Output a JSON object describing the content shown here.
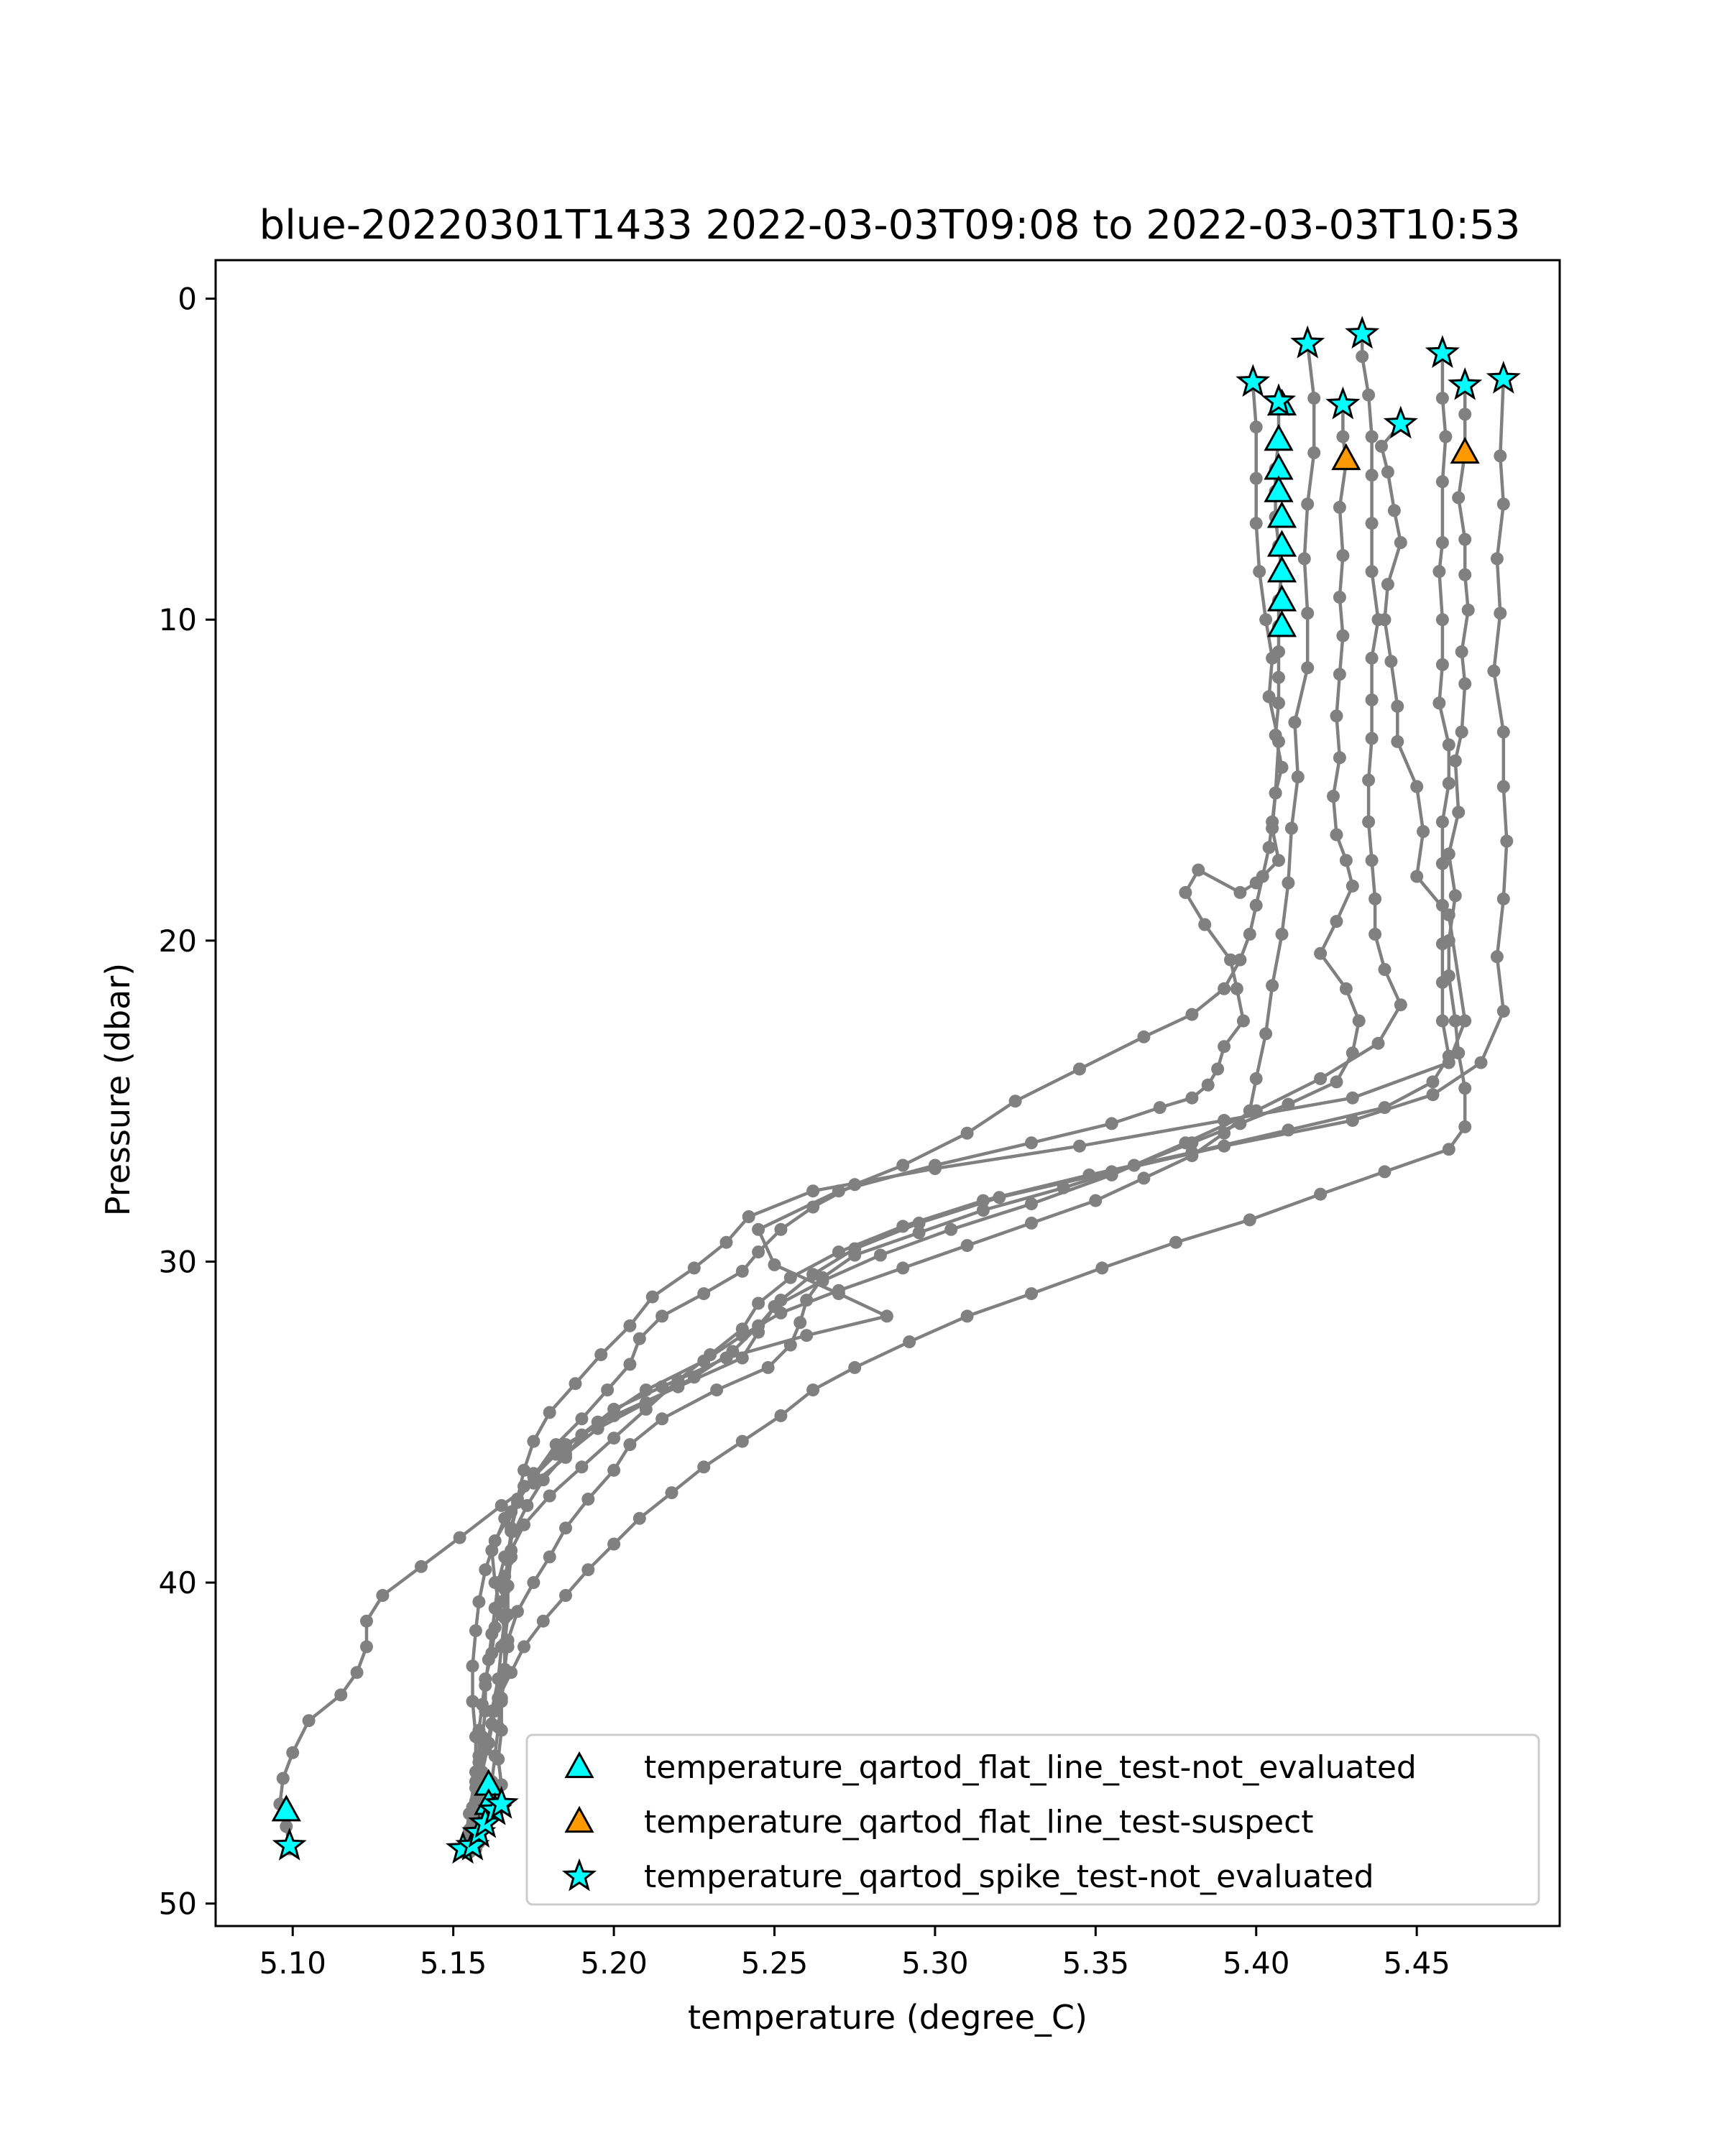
{
  "chart_data": {
    "type": "line",
    "title": "blue-20220301T1433 2022-03-03T09:08 to 2022-03-03T10:53",
    "xlabel": "temperature (degree_C)",
    "ylabel": "Pressure (dbar)",
    "xlim": [
      5.076,
      5.4945
    ],
    "ylim": [
      50.7,
      -1.2
    ],
    "y_inverted": true,
    "grid": false,
    "legend_position": "lower right",
    "xticks": [
      "5.10",
      "5.15",
      "5.20",
      "5.25",
      "5.30",
      "5.35",
      "5.40",
      "5.45"
    ],
    "yticks": [
      "0",
      "10",
      "20",
      "30",
      "40",
      "50"
    ],
    "colors": {
      "profile_line": "#808080",
      "flat_line_not_evaluated": "#00ffff",
      "flat_line_suspect": "#ff9900",
      "spike_not_evaluated": "#00ffff",
      "marker_edge": "#000000",
      "axes": "#000000"
    },
    "series": [
      {
        "x": [
          5.399,
          5.4,
          5.4,
          5.4,
          5.401,
          5.403,
          5.405,
          5.404,
          5.407,
          5.406,
          5.405,
          5.407,
          5.4,
          5.395,
          5.382,
          5.378,
          5.384,
          5.392,
          5.394,
          5.396,
          5.39,
          5.388,
          5.385,
          5.38,
          5.37,
          5.355,
          5.33,
          5.3,
          5.27,
          5.245,
          5.25,
          5.27,
          5.285,
          5.26,
          5.235,
          5.215,
          5.2,
          5.19,
          5.185,
          5.175,
          5.165,
          5.152,
          5.14,
          5.128,
          5.123,
          5.123,
          5.12,
          5.115,
          5.105,
          5.1,
          5.097,
          5.096,
          5.098,
          5.099
        ],
        "y": [
          2.7,
          4,
          5.6,
          7,
          8.5,
          10,
          11.2,
          12.4,
          13.8,
          15.4,
          16.5,
          17.5,
          18.2,
          18.5,
          17.8,
          18.5,
          19.5,
          20.6,
          21.5,
          22.5,
          23.3,
          24,
          24.5,
          24.9,
          25.2,
          25.7,
          26.3,
          27,
          27.8,
          29,
          30.1,
          31,
          31.7,
          32.3,
          33,
          33.9,
          34.6,
          35.4,
          36.1,
          36.9,
          37.6,
          38.6,
          39.5,
          40.4,
          41.2,
          42,
          42.8,
          43.5,
          44.3,
          45.3,
          46.1,
          46.9,
          47.6,
          48.3
        ]
      },
      {
        "x": [
          5.407,
          5.407,
          5.406,
          5.406,
          5.406,
          5.407,
          5.408,
          5.407,
          5.407,
          5.407,
          5.407,
          5.407,
          5.406,
          5.408,
          5.406,
          5.405,
          5.404,
          5.402,
          5.4,
          5.398,
          5.395,
          5.39,
          5.38,
          5.365,
          5.345,
          5.325,
          5.31,
          5.29,
          5.275,
          5.262,
          5.252,
          5.245,
          5.24,
          5.228,
          5.215,
          5.208,
          5.205,
          5.198,
          5.19,
          5.182,
          5.175,
          5.168,
          5.163,
          5.16,
          5.158,
          5.157,
          5.156,
          5.156,
          5.157,
          5.157,
          5.155,
          5.153
        ],
        "y": [
          3.2,
          4.4,
          5.3,
          6,
          6.8,
          7.7,
          8.5,
          9.4,
          10.2,
          11,
          11.8,
          12.6,
          13.6,
          14.6,
          15.4,
          16.3,
          17.1,
          18,
          18.9,
          19.8,
          20.6,
          21.5,
          22.3,
          23,
          24,
          25,
          26,
          27,
          27.6,
          28.3,
          29,
          29.7,
          30.3,
          31,
          31.7,
          32.4,
          33.2,
          34,
          34.9,
          35.7,
          36.7,
          37.8,
          38.7,
          39.6,
          40.6,
          41.5,
          42.6,
          43.7,
          44.8,
          45.9,
          47.2,
          48.4
        ]
      },
      {
        "x": [
          5.416,
          5.418,
          5.418,
          5.416,
          5.415,
          5.416,
          5.416,
          5.412,
          5.413,
          5.411,
          5.41,
          5.408,
          5.405,
          5.403,
          5.4,
          5.398,
          5.39,
          5.38,
          5.365,
          5.35,
          5.33,
          5.31,
          5.29,
          5.27,
          5.252,
          5.24,
          5.228,
          5.21,
          5.195,
          5.182,
          5.172,
          5.166,
          5.162,
          5.163,
          5.165,
          5.167,
          5.165,
          5.163,
          5.161,
          5.159,
          5.158,
          5.158,
          5.157,
          5.158,
          5.16
        ],
        "y": [
          1.4,
          3.1,
          4.8,
          6.4,
          8.1,
          9.8,
          11.5,
          13.2,
          14.9,
          16.5,
          18.2,
          19.8,
          21.4,
          22.9,
          24.3,
          25.3,
          26,
          26.7,
          27.4,
          28.1,
          28.8,
          29.5,
          30.2,
          30.9,
          31.6,
          32.3,
          33.1,
          34,
          35,
          36,
          37,
          38,
          39,
          40,
          41,
          42,
          43,
          44,
          45,
          45.9,
          46.8,
          47.4,
          47.9,
          48.1,
          47.5
        ]
      },
      {
        "x": [
          5.427,
          5.427,
          5.428,
          5.426,
          5.427,
          5.426,
          5.427,
          5.426,
          5.425,
          5.426,
          5.424,
          5.425,
          5.428,
          5.43,
          5.425,
          5.42,
          5.428,
          5.432,
          5.43,
          5.425,
          5.41,
          5.395,
          5.38,
          5.362,
          5.34,
          5.315,
          5.295,
          5.275,
          5.265,
          5.26,
          5.258,
          5.255,
          5.248,
          5.232,
          5.215,
          5.205,
          5.2,
          5.192,
          5.185,
          5.18,
          5.175,
          5.17,
          5.167,
          5.166,
          5.165,
          5.164,
          5.163,
          5.162,
          5.16,
          5.158,
          5.157
        ],
        "y": [
          3.3,
          4.3,
          5.1,
          6.5,
          8,
          9.3,
          10.5,
          11.7,
          13,
          14.3,
          15.5,
          16.7,
          17.5,
          18.3,
          19.4,
          20.4,
          21.5,
          22.5,
          23.5,
          24.4,
          25.1,
          25.7,
          26.3,
          27,
          27.7,
          28.4,
          29.1,
          29.8,
          30.5,
          31.2,
          31.9,
          32.6,
          33.3,
          34,
          34.9,
          35.7,
          36.5,
          37.4,
          38.3,
          39.2,
          40,
          40.9,
          41.8,
          42.7,
          43.6,
          44.5,
          45.4,
          46.2,
          47,
          47.7,
          48.3
        ]
      },
      {
        "x": [
          5.433,
          5.433,
          5.435,
          5.436,
          5.436,
          5.436,
          5.436,
          5.438,
          5.436,
          5.436,
          5.436,
          5.435,
          5.435,
          5.436,
          5.437,
          5.437,
          5.44,
          5.445,
          5.438,
          5.42,
          5.4,
          5.378,
          5.355,
          5.33,
          5.305,
          5.283,
          5.265,
          5.25,
          5.245,
          5.24,
          5.22,
          5.2,
          5.185,
          5.175,
          5.17,
          5.168,
          5.167,
          5.166,
          5.166,
          5.165,
          5.164,
          5.162,
          5.161
        ],
        "y": [
          1.1,
          1.8,
          3,
          4.3,
          5.5,
          7,
          8.5,
          10,
          11.2,
          12.5,
          13.7,
          15,
          16.3,
          17.5,
          18.7,
          19.8,
          20.9,
          22,
          23.2,
          24.3,
          25.3,
          26.3,
          27.3,
          28.2,
          29,
          29.8,
          30.6,
          31.4,
          32.2,
          33,
          33.9,
          34.8,
          35.7,
          36.6,
          37.5,
          38.4,
          39.3,
          40.2,
          41.1,
          42,
          43,
          44,
          45
        ]
      },
      {
        "x": [
          5.445,
          5.439,
          5.441,
          5.443,
          5.445,
          5.441,
          5.44,
          5.442,
          5.444,
          5.444,
          5.45,
          5.452,
          5.45,
          5.46,
          5.465,
          5.46,
          5.43,
          5.39,
          5.345,
          5.3,
          5.262,
          5.242,
          5.235,
          5.225,
          5.212,
          5.205,
          5.196,
          5.188,
          5.18,
          5.175,
          5.172,
          5.17,
          5.168,
          5.168,
          5.167,
          5.167,
          5.166,
          5.166,
          5.165,
          5.165,
          5.164,
          5.165,
          5.165
        ],
        "y": [
          3.9,
          4.6,
          5.4,
          6.6,
          7.6,
          8.9,
          10,
          11.3,
          12.7,
          13.8,
          15.2,
          16.6,
          18,
          19.2,
          22.5,
          23.8,
          24.9,
          25.6,
          26.4,
          27.1,
          27.8,
          28.6,
          29.4,
          30.2,
          31.1,
          32,
          32.9,
          33.8,
          34.7,
          35.6,
          36.5,
          37.4,
          38.3,
          39.2,
          40.1,
          41,
          41.9,
          42.8,
          43.7,
          44.6,
          45.5,
          46.3,
          47
        ]
      },
      {
        "x": [
          5.458,
          5.458,
          5.459,
          5.458,
          5.458,
          5.457,
          5.458,
          5.458,
          5.457,
          5.46,
          5.46,
          5.458,
          5.458,
          5.458,
          5.458,
          5.458,
          5.458,
          5.46,
          5.455,
          5.44,
          5.41,
          5.38,
          5.348,
          5.315,
          5.29,
          5.27,
          5.255,
          5.245,
          5.24,
          5.23,
          5.22,
          5.21,
          5.2,
          5.19,
          5.18,
          5.172,
          5.168,
          5.166,
          5.165,
          5.163,
          5.162,
          5.16,
          5.159,
          5.158,
          5.158,
          5.157,
          5.156,
          5.155,
          5.155
        ],
        "y": [
          1.7,
          3.1,
          4.3,
          5.7,
          7.6,
          8.5,
          10,
          11.4,
          12.6,
          13.9,
          15.1,
          16.3,
          17.6,
          18.9,
          20.1,
          21.3,
          22.5,
          23.6,
          24.4,
          25.2,
          25.9,
          26.6,
          27.3,
          28.1,
          28.9,
          29.7,
          30.5,
          31.3,
          32.1,
          32.9,
          33.7,
          34.6,
          35.5,
          36.4,
          37.3,
          38.2,
          39,
          39.8,
          40.6,
          41.4,
          42.2,
          43,
          43.8,
          44.6,
          45.4,
          46.2,
          47,
          47.7,
          48.4
        ]
      },
      {
        "x": [
          5.465,
          5.465,
          5.465,
          5.463,
          5.465,
          5.465,
          5.466,
          5.464,
          5.465,
          5.464,
          5.462,
          5.463,
          5.46,
          5.462,
          5.46,
          5.46,
          5.462,
          5.463,
          5.465,
          5.465,
          5.46,
          5.44,
          5.42,
          5.398,
          5.375,
          5.352,
          5.33,
          5.31,
          5.292,
          5.275,
          5.262,
          5.252,
          5.24,
          5.228,
          5.218,
          5.208,
          5.2,
          5.192,
          5.185,
          5.178,
          5.172,
          5.168,
          5.164,
          5.162,
          5.16,
          5.158,
          5.157,
          5.156,
          5.155
        ],
        "y": [
          2.7,
          3.6,
          4.8,
          6.2,
          7.5,
          8.6,
          9.7,
          11,
          12,
          13.5,
          14.4,
          16,
          17.3,
          18.6,
          20,
          21.1,
          22.5,
          23.5,
          24.6,
          25.8,
          26.5,
          27.2,
          27.9,
          28.7,
          29.4,
          30.2,
          31,
          31.7,
          32.5,
          33.3,
          34,
          34.8,
          35.6,
          36.4,
          37.2,
          38,
          38.8,
          39.6,
          40.4,
          41.2,
          42,
          42.8,
          43.6,
          44.4,
          45.2,
          46,
          46.8,
          47.6,
          48.4
        ]
      },
      {
        "x": [
          5.477,
          5.476,
          5.477,
          5.475,
          5.476,
          5.474,
          5.477,
          5.477,
          5.478,
          5.477,
          5.475,
          5.477,
          5.47,
          5.455,
          5.43,
          5.39,
          5.355,
          5.32,
          5.295,
          5.275,
          5.262,
          5.252,
          5.245,
          5.237,
          5.225,
          5.21,
          5.195,
          5.185,
          5.178,
          5.173,
          5.169,
          5.166,
          5.164,
          5.163,
          5.162,
          5.161,
          5.16,
          5.16,
          5.159,
          5.158,
          5.157,
          5.156,
          5.155,
          5.154
        ],
        "y": [
          2.5,
          4.9,
          6.4,
          8.1,
          9.8,
          11.6,
          13.5,
          15.2,
          16.9,
          18.7,
          20.5,
          22.2,
          23.8,
          24.8,
          25.6,
          26.4,
          27.2,
          28,
          28.8,
          29.6,
          30.4,
          31.2,
          32,
          32.8,
          33.6,
          34.4,
          35.2,
          36,
          36.8,
          37.6,
          38.4,
          39.2,
          40,
          40.8,
          41.6,
          42.4,
          43.2,
          44,
          44.8,
          45.6,
          46.4,
          47.2,
          48,
          48.4
        ]
      }
    ],
    "flat_line_not_evaluated": [
      {
        "x": 5.407,
        "y": 4.4
      },
      {
        "x": 5.407,
        "y": 5.3
      },
      {
        "x": 5.407,
        "y": 6.0
      },
      {
        "x": 5.408,
        "y": 6.8
      },
      {
        "x": 5.408,
        "y": 7.7
      },
      {
        "x": 5.408,
        "y": 8.5
      },
      {
        "x": 5.408,
        "y": 9.4
      },
      {
        "x": 5.408,
        "y": 10.2
      },
      {
        "x": 5.408,
        "y": 3.3
      },
      {
        "x": 5.098,
        "y": 47.1
      },
      {
        "x": 5.161,
        "y": 46.3
      },
      {
        "x": 5.161,
        "y": 46.9
      }
    ],
    "flat_line_suspect": [
      {
        "x": 5.428,
        "y": 5.0
      },
      {
        "x": 5.465,
        "y": 4.8
      }
    ],
    "spike_not_evaluated": [
      {
        "x": 5.399,
        "y": 2.6
      },
      {
        "x": 5.407,
        "y": 3.2
      },
      {
        "x": 5.416,
        "y": 1.4
      },
      {
        "x": 5.427,
        "y": 3.3
      },
      {
        "x": 5.433,
        "y": 1.1
      },
      {
        "x": 5.445,
        "y": 3.9
      },
      {
        "x": 5.458,
        "y": 1.7
      },
      {
        "x": 5.465,
        "y": 2.7
      },
      {
        "x": 5.477,
        "y": 2.5
      },
      {
        "x": 5.099,
        "y": 48.2
      },
      {
        "x": 5.153,
        "y": 48.3
      },
      {
        "x": 5.156,
        "y": 48.2
      },
      {
        "x": 5.158,
        "y": 47.8
      },
      {
        "x": 5.16,
        "y": 47.5
      },
      {
        "x": 5.163,
        "y": 47.1
      },
      {
        "x": 5.165,
        "y": 46.9
      }
    ],
    "legend": [
      {
        "label": "temperature_qartod_flat_line_test-not_evaluated",
        "marker": "triangle",
        "color": "#00ffff"
      },
      {
        "label": "temperature_qartod_flat_line_test-suspect",
        "marker": "triangle",
        "color": "#ff9900"
      },
      {
        "label": "temperature_qartod_spike_test-not_evaluated",
        "marker": "star",
        "color": "#00ffff"
      }
    ]
  }
}
